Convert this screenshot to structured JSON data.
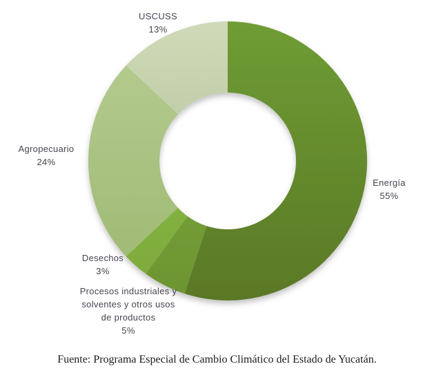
{
  "chart_data": {
    "type": "pie",
    "donut": true,
    "title": "",
    "start_angle_deg": 0,
    "direction": "clockwise",
    "hole_ratio": 0.49,
    "legend_position": "none",
    "labels_style": "outside-callout-text",
    "label_color": "#45464F",
    "background_color": "#FFFFFF",
    "segments": [
      {
        "slug": "energia",
        "label": "Energía",
        "lines": [
          "Energía"
        ],
        "value": 55,
        "pct_label": "55%",
        "color_top": "#6F9D34",
        "color_bottom": "#5A7826"
      },
      {
        "slug": "procesos",
        "label": "Procesos industriales y solventes y otros usos de productos",
        "lines": [
          "Procesos industriales y",
          "solventes y otros usos",
          "de productos"
        ],
        "value": 5,
        "pct_label": "5%",
        "color_top": "#82AF40",
        "color_bottom": "#6C9431"
      },
      {
        "slug": "desechos",
        "label": "Desechos",
        "lines": [
          "Desechos"
        ],
        "value": 3,
        "pct_label": "3%",
        "color_top": "#92C24C",
        "color_bottom": "#7CA93A"
      },
      {
        "slug": "agropecuario",
        "label": "Agropecuario",
        "lines": [
          "Agropecuario"
        ],
        "value": 24,
        "pct_label": "24%",
        "color_top": "#B7CD92",
        "color_bottom": "#9CB870"
      },
      {
        "slug": "uscuss",
        "label": "USCUSS",
        "lines": [
          "USCUSS"
        ],
        "value": 13,
        "pct_label": "13%",
        "color_top": "#CFDAB8",
        "color_bottom": "#A9B78C"
      }
    ]
  },
  "footer": {
    "text": "Fuente: Programa Especial de Cambio Climático del Estado de Yucatán."
  }
}
